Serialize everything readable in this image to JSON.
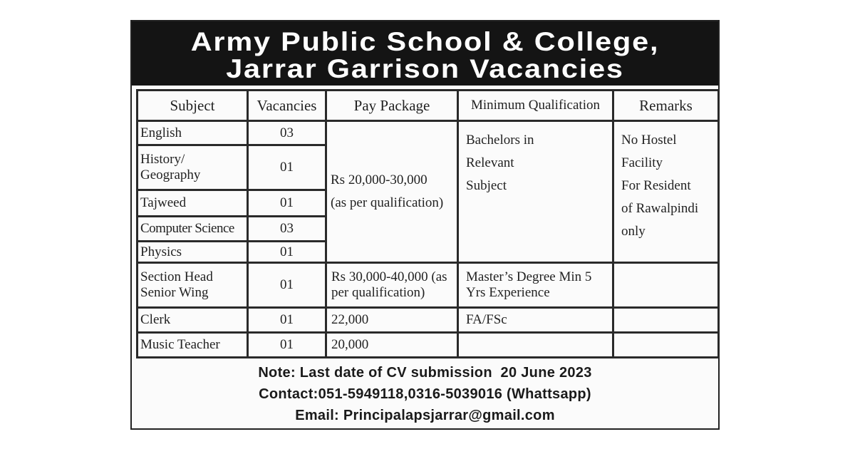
{
  "header": {
    "line1": "Army Public School & College,",
    "line2": "Jarrar Garrison Vacancies"
  },
  "table": {
    "columns": [
      "Subject",
      "Vacancies",
      "Pay Package",
      "Minimum Qualification",
      "Remarks"
    ],
    "group1": {
      "rows": [
        {
          "subject": "English",
          "vacancies": "03"
        },
        {
          "subject": "History/ Geography",
          "vacancies": "01"
        },
        {
          "subject": "Tajweed",
          "vacancies": "01"
        },
        {
          "subject": "Computer Science",
          "vacancies": "03"
        },
        {
          "subject": "Physics",
          "vacancies": "01"
        }
      ],
      "pay_line1": "Rs 20,000-30,000",
      "pay_line2": "(as per qualification)",
      "qualification": [
        "Bachelors in",
        "Relevant",
        "Subject"
      ],
      "remarks": [
        "No Hostel",
        "Facility",
        "For Resident",
        "of Rawalpindi",
        "only"
      ]
    },
    "rows": [
      {
        "subject": "Section Head Senior Wing",
        "vacancies": "01",
        "pay": "Rs 30,000-40,000 (as per qualification)",
        "qualification": "Master’s Degree Min 5 Yrs Experience",
        "remarks": ""
      },
      {
        "subject": "Clerk",
        "vacancies": "01",
        "pay": "22,000",
        "qualification": "FA/FSc",
        "remarks": ""
      },
      {
        "subject": "Music Teacher",
        "vacancies": "01",
        "pay": "20,000",
        "qualification": "",
        "remarks": ""
      }
    ]
  },
  "notes": {
    "deadline": "Note: Last date of CV submission  20 June 2023",
    "contact": "Contact:051-5949118,0316-5039016 (Whattsapp)",
    "email": "Email: Principalapsjarrar@gmail.com"
  }
}
